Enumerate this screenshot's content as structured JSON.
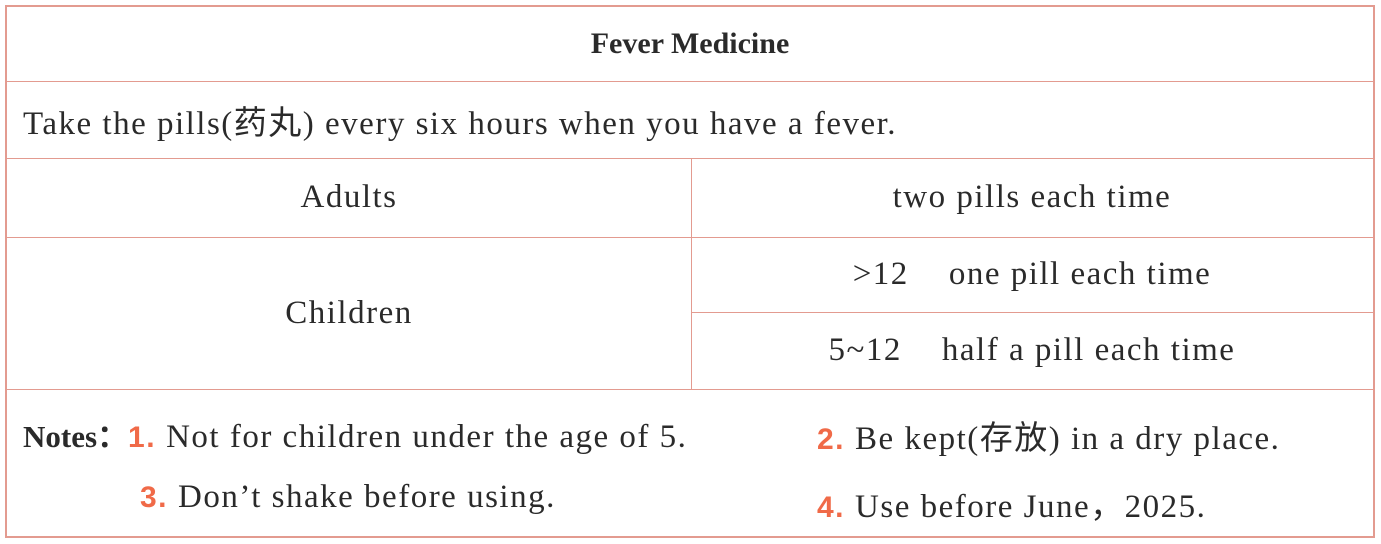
{
  "title": "Fever Medicine",
  "instruction": "Take the pills(药丸) every six hours when you have a fever.",
  "rows": [
    {
      "group": "Adults",
      "dose": "two pills each time"
    },
    {
      "group": "Children",
      "doses": [
        {
          "age": ">12",
          "dose": "one pill each time"
        },
        {
          "age": "5~12",
          "dose": "half a pill each time"
        }
      ]
    }
  ],
  "notes": {
    "label": "Notes：",
    "items": [
      {
        "num": "1.",
        "text": "Not for children under the age of 5."
      },
      {
        "num": "2.",
        "text": "Be kept(存放) in a dry place."
      },
      {
        "num": "3.",
        "text": "Don’t shake before using."
      },
      {
        "num": "4.",
        "text": "Use before June，2025."
      }
    ]
  },
  "colors": {
    "border": "#e39b90",
    "note_number": "#f06a48"
  }
}
